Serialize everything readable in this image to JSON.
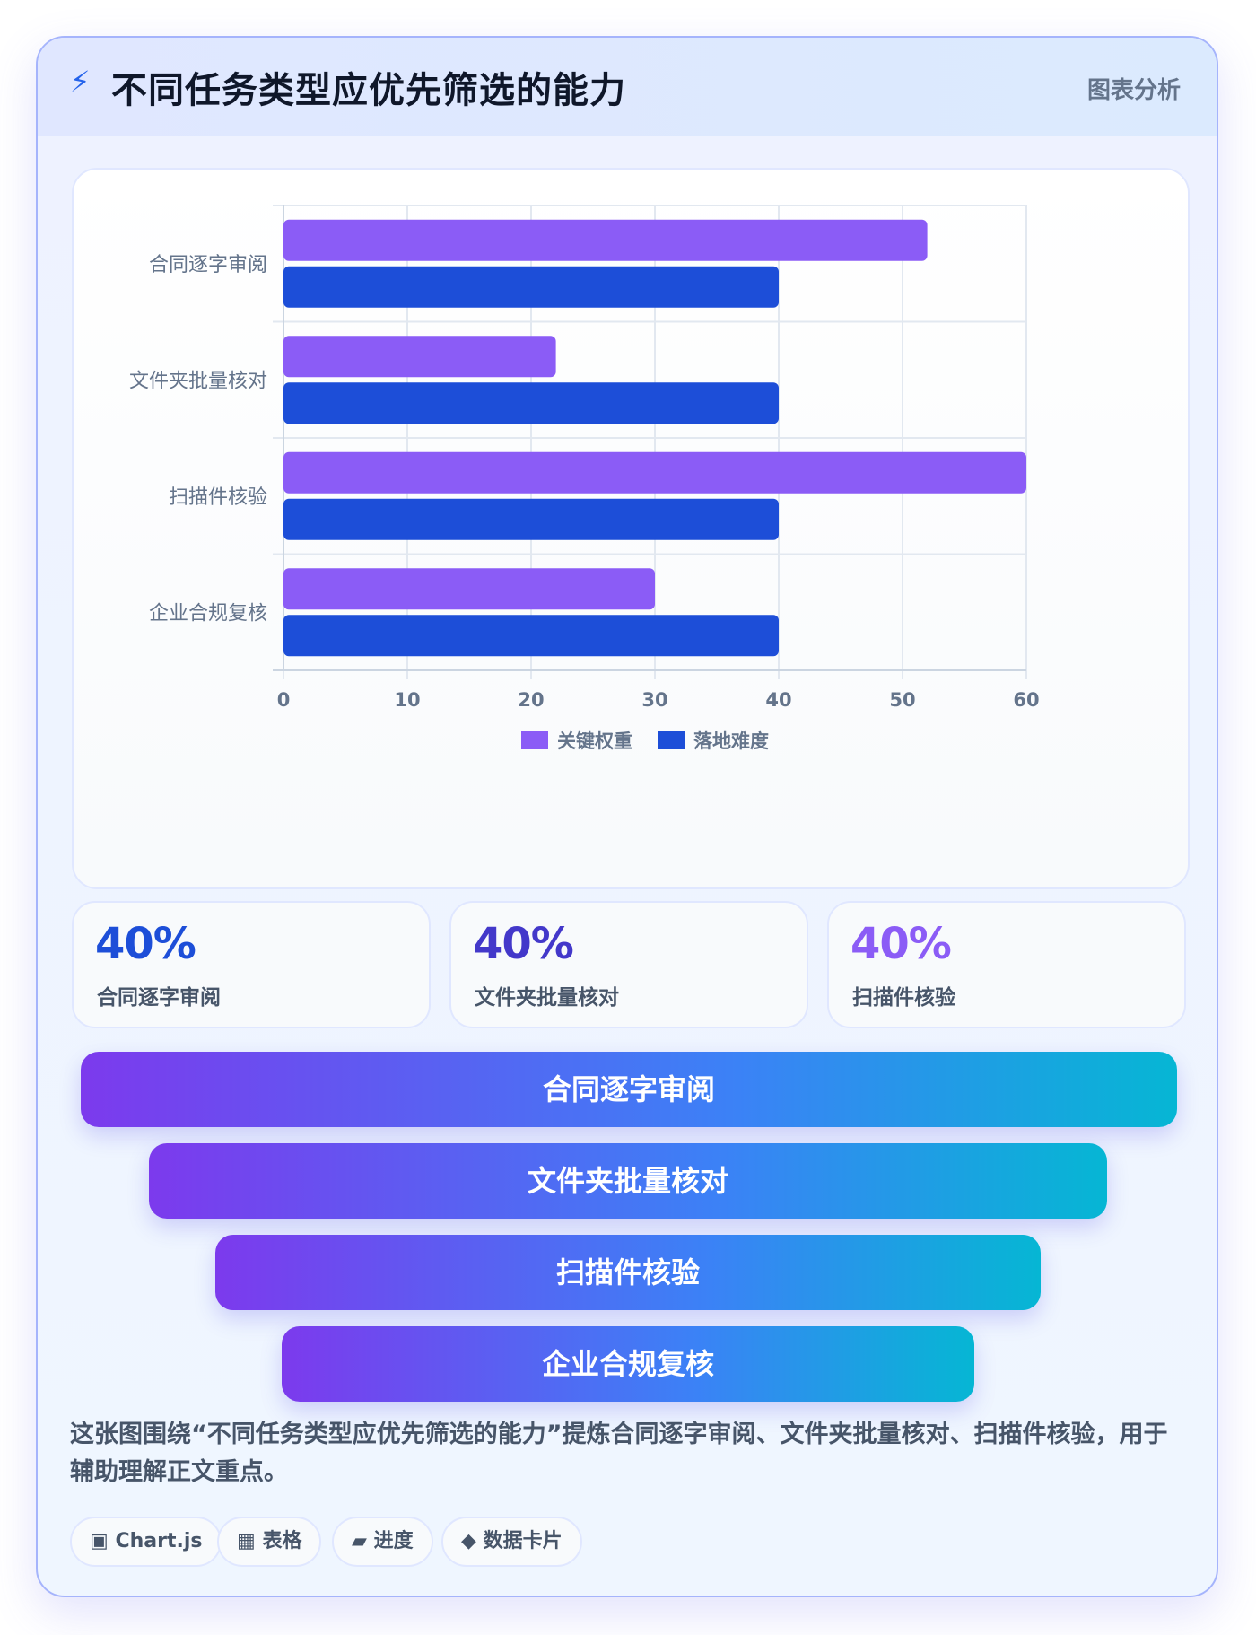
{
  "header": {
    "icon": "bolt-icon",
    "title": "不同任务类型应优先筛选的能力",
    "tag": "图表分析"
  },
  "chart_data": {
    "type": "bar",
    "orientation": "horizontal",
    "categories": [
      "合同逐字审阅",
      "文件夹批量核对",
      "扫描件核验",
      "企业合规复核"
    ],
    "series": [
      {
        "name": "关键权重",
        "values": [
          52,
          22,
          60,
          30
        ],
        "color": "#8b5cf6"
      },
      {
        "name": "落地难度",
        "values": [
          40,
          40,
          40,
          40
        ],
        "color": "#1d4ed8"
      }
    ],
    "xlim": [
      0,
      60
    ],
    "xticks": [
      0,
      10,
      20,
      30,
      40,
      50,
      60
    ],
    "title": "",
    "xlabel": "",
    "ylabel": "",
    "grid": true,
    "legend": "bottom-center"
  },
  "stats": [
    {
      "value": "40%",
      "label": "合同逐字审阅",
      "color": "#1d4ed8"
    },
    {
      "value": "40%",
      "label": "文件夹批量核对",
      "color": "#4338ca"
    },
    {
      "value": "40%",
      "label": "扫描件核验",
      "color": "#8b5cf6"
    }
  ],
  "funnel": [
    "合同逐字审阅",
    "文件夹批量核对",
    "扫描件核验",
    "企业合规复核"
  ],
  "summary": "这张图围绕“不同任务类型应优先筛选的能力”提炼合同逐字审阅、文件夹批量核对、扫描件核验，用于辅助理解正文重点。",
  "chips": [
    {
      "icon": "▣",
      "label": "Chart.js"
    },
    {
      "icon": "▦",
      "label": "表格"
    },
    {
      "icon": "▰",
      "label": "进度"
    },
    {
      "icon": "◆",
      "label": "数据卡片"
    }
  ]
}
